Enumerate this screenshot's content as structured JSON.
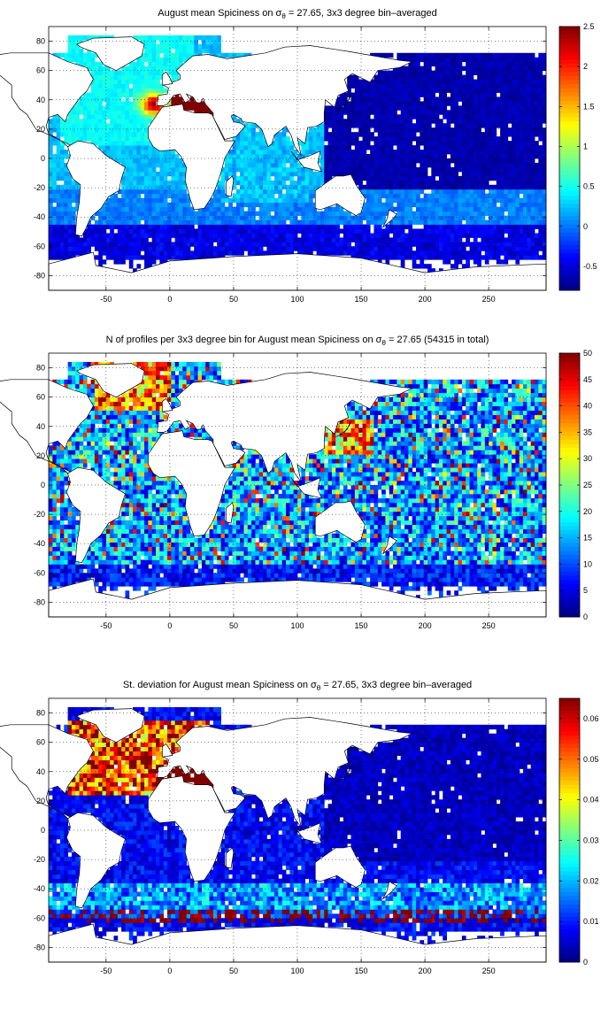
{
  "panels": [
    {
      "id": "mean",
      "title_main": "August mean Spiciness on σ",
      "title_sub": "θ",
      "title_rest": " = 27.65, 3x3 degree bin–averaged",
      "colorbar": {
        "min": -0.8,
        "max": 2.5,
        "ticks": [
          "2.5",
          "2",
          "1.5",
          "1",
          "0.5",
          "0",
          "-0.5"
        ],
        "tick_values": [
          2.5,
          2,
          1.5,
          1,
          0.5,
          0,
          -0.5
        ]
      }
    },
    {
      "id": "count",
      "title_main": "N of profiles per 3x3 degree bin for August mean Spiciness on σ",
      "title_sub": "θ",
      "title_rest": " = 27.65 (54315 in total)",
      "colorbar": {
        "min": 0,
        "max": 50,
        "ticks": [
          "50",
          "45",
          "40",
          "35",
          "30",
          "25",
          "20",
          "15",
          "10",
          "5",
          "0"
        ],
        "tick_values": [
          50,
          45,
          40,
          35,
          30,
          25,
          20,
          15,
          10,
          5,
          0
        ]
      }
    },
    {
      "id": "std",
      "title_main": "St. deviation for August mean Spiciness on σ",
      "title_sub": "θ",
      "title_rest": " = 27.65, 3x3 degree bin–averaged",
      "colorbar": {
        "min": 0,
        "max": 0.065,
        "ticks": [
          "0.06",
          "0.05",
          "0.04",
          "0.03",
          "0.02",
          "0.01",
          "0"
        ],
        "tick_values": [
          0.06,
          0.05,
          0.04,
          0.03,
          0.02,
          0.01,
          0
        ]
      }
    }
  ],
  "axes": {
    "x_ticks": [
      "-50",
      "0",
      "50",
      "100",
      "150",
      "200",
      "250"
    ],
    "x_values": [
      -50,
      0,
      50,
      100,
      150,
      200,
      250
    ],
    "y_ticks": [
      "80",
      "60",
      "40",
      "20",
      "0",
      "-20",
      "-40",
      "-60",
      "-80"
    ],
    "y_values": [
      80,
      60,
      40,
      20,
      0,
      -20,
      -40,
      -60,
      -80
    ],
    "xlim": [
      -95,
      295
    ],
    "ylim": [
      -90,
      90
    ],
    "grid": "dotted"
  }
}
